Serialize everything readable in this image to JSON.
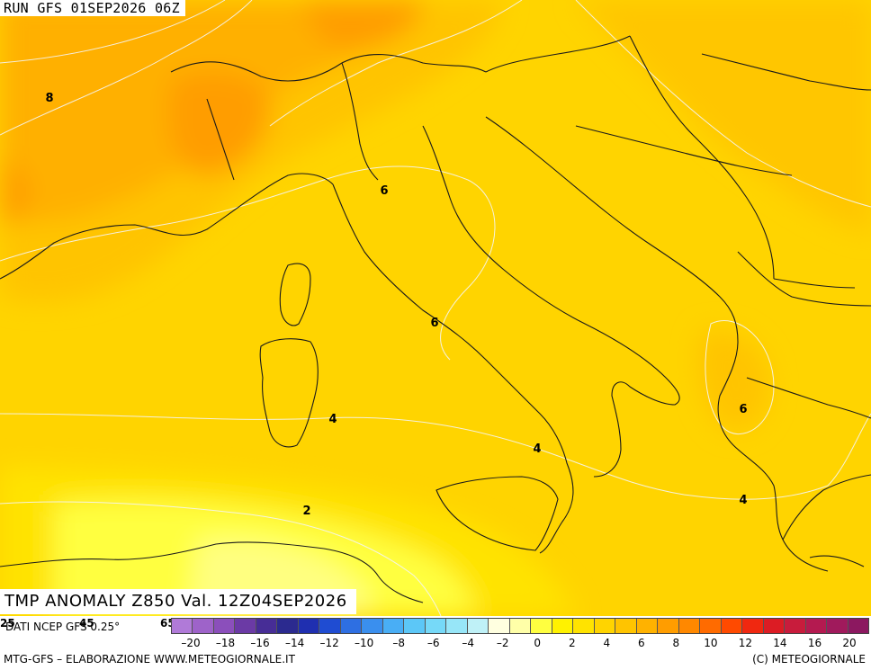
{
  "run_label": "RUN GFS 01SEP2026 06Z",
  "map_title": "TMP ANOMALY Z850 Val. 12Z04SEP2026",
  "source_note": "DATI NCEP GFS 0.25°",
  "corner_ticks": [
    "25",
    "45",
    "65"
  ],
  "footer": {
    "left": "MTG-GFS – ELABORAZIONE WWW.METEOGIORNALE.IT",
    "right": "(C) METEOGIORNALE"
  },
  "contour_labels": [
    "8",
    "6",
    "6",
    "4",
    "4",
    "6",
    "4",
    "2"
  ],
  "colorbar": {
    "labels": [
      "–20",
      "–18",
      "–16",
      "–14",
      "–12",
      "–10",
      "–8",
      "–6",
      "–4",
      "–2",
      "0",
      "2",
      "4",
      "6",
      "8",
      "10",
      "12",
      "14",
      "16",
      "20"
    ],
    "colors": [
      "#b07ad8",
      "#9e63c9",
      "#8b4fbb",
      "#6b3aa5",
      "#472d96",
      "#2b2a8f",
      "#1f2fb0",
      "#1f4cd2",
      "#2e6fe2",
      "#3a8fee",
      "#49aef5",
      "#5cc7f7",
      "#76d9f8",
      "#97e6f8",
      "#bff1f7",
      "#ffffe0",
      "#ffffa8",
      "#ffff40",
      "#fff200",
      "#ffe300",
      "#ffd400",
      "#ffc400",
      "#ffb200",
      "#ff9d00",
      "#ff8800",
      "#ff6b00",
      "#ff4a00",
      "#f02810",
      "#dc1c24",
      "#c81c3c",
      "#b41a50",
      "#a01a5c",
      "#8c1860"
    ]
  },
  "colors": {
    "land_outline": "#1a1a1a",
    "contour": "#f5f5f5"
  }
}
